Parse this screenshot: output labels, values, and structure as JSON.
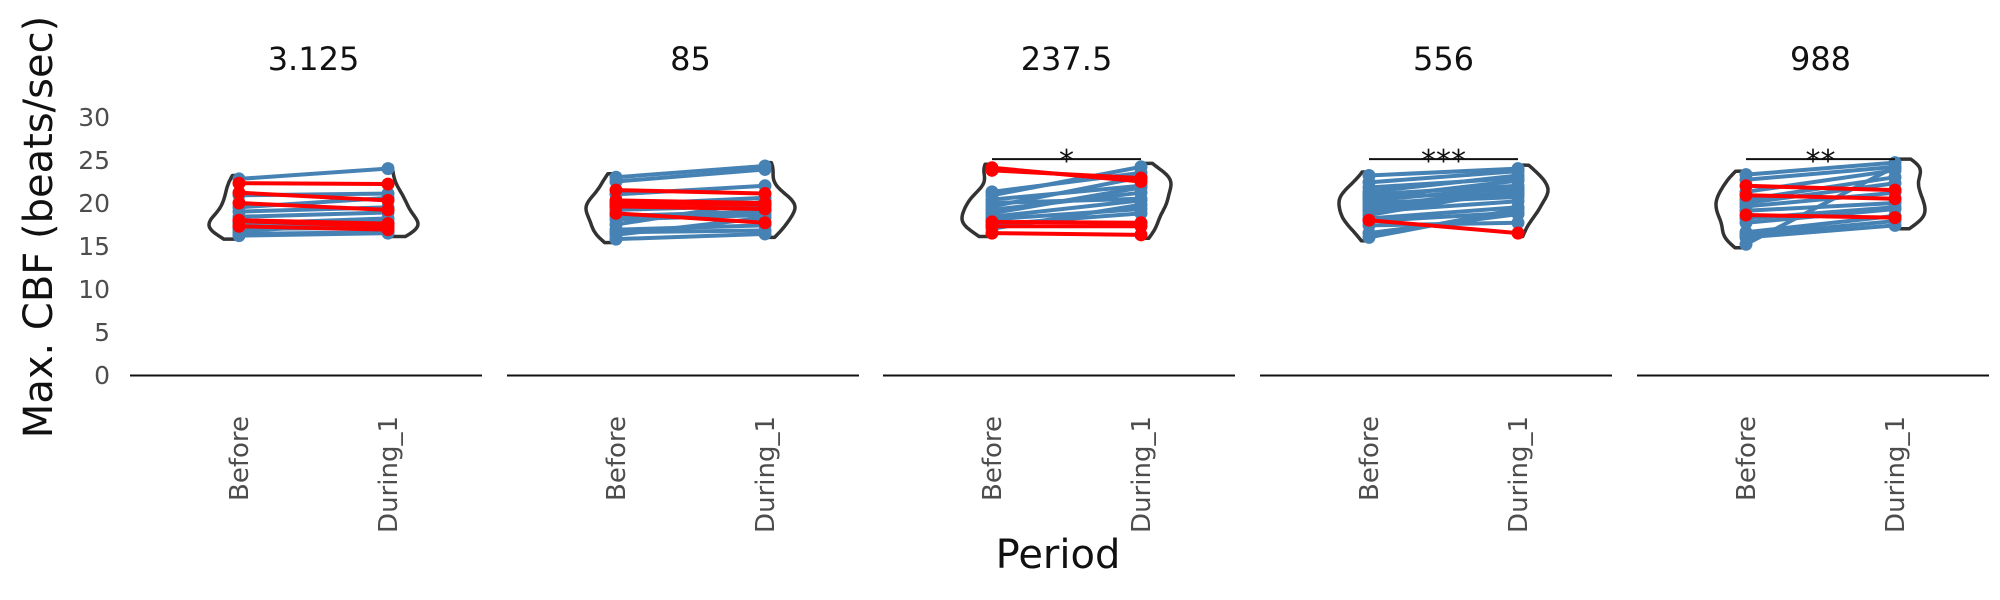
{
  "chart_data": {
    "type": "line",
    "ylabel": "Max. CBF (beats/sec)",
    "xlabel": "Period",
    "ylim": [
      0,
      30
    ],
    "yticks": [
      0,
      5,
      10,
      15,
      20,
      25,
      30
    ],
    "categories": [
      "Before",
      "During_1"
    ],
    "colors": {
      "increase": "#4682b4",
      "decrease": "#ff0000",
      "violin": "#333333"
    },
    "facets": [
      {
        "title": "3.125",
        "significance": "",
        "lines": [
          [
            22.8,
            24.0
          ],
          [
            22.3,
            22.2
          ],
          [
            21.2,
            20.3
          ],
          [
            20.9,
            21.1
          ],
          [
            20.0,
            19.2
          ],
          [
            19.5,
            20.6
          ],
          [
            19.0,
            19.5
          ],
          [
            18.4,
            18.9
          ],
          [
            18.0,
            17.6
          ],
          [
            17.9,
            17.3
          ],
          [
            17.6,
            18.2
          ],
          [
            17.3,
            16.9
          ],
          [
            17.2,
            17.5
          ],
          [
            17.0,
            17.1
          ],
          [
            16.7,
            17.8
          ],
          [
            16.4,
            16.6
          ],
          [
            16.2,
            16.5
          ]
        ]
      },
      {
        "title": "85",
        "significance": "",
        "lines": [
          [
            23.0,
            24.3
          ],
          [
            22.5,
            23.9
          ],
          [
            21.5,
            21.1
          ],
          [
            21.0,
            22.0
          ],
          [
            20.3,
            20.0
          ],
          [
            20.0,
            19.8
          ],
          [
            19.8,
            20.6
          ],
          [
            19.6,
            19.3
          ],
          [
            19.2,
            19.7
          ],
          [
            18.8,
            17.7
          ],
          [
            18.5,
            19.0
          ],
          [
            18.1,
            18.6
          ],
          [
            17.5,
            20.2
          ],
          [
            16.9,
            17.4
          ],
          [
            16.6,
            16.8
          ],
          [
            16.3,
            18.3
          ],
          [
            15.8,
            16.4
          ]
        ]
      },
      {
        "title": "237.5",
        "significance": "*",
        "lines": [
          [
            24.1,
            22.5
          ],
          [
            23.8,
            22.9
          ],
          [
            21.3,
            23.5
          ],
          [
            20.9,
            24.2
          ],
          [
            20.4,
            22.0
          ],
          [
            20.0,
            20.5
          ],
          [
            19.6,
            23.0
          ],
          [
            19.2,
            21.2
          ],
          [
            18.8,
            21.8
          ],
          [
            18.4,
            20.3
          ],
          [
            18.1,
            19.3
          ],
          [
            17.8,
            17.7
          ],
          [
            17.5,
            18.8
          ],
          [
            17.3,
            17.3
          ],
          [
            16.5,
            16.3
          ],
          [
            17.0,
            19.8
          ]
        ]
      },
      {
        "title": "556",
        "significance": "***",
        "lines": [
          [
            23.2,
            24.0
          ],
          [
            22.4,
            23.7
          ],
          [
            21.8,
            22.9
          ],
          [
            21.3,
            23.2
          ],
          [
            21.0,
            22.0
          ],
          [
            20.8,
            21.0
          ],
          [
            20.6,
            22.6
          ],
          [
            20.3,
            21.8
          ],
          [
            20.0,
            20.7
          ],
          [
            19.7,
            21.4
          ],
          [
            19.3,
            21.1
          ],
          [
            19.0,
            20.2
          ],
          [
            18.6,
            21.6
          ],
          [
            18.2,
            19.5
          ],
          [
            17.9,
            18.9
          ],
          [
            17.4,
            17.7
          ],
          [
            16.5,
            18.7
          ],
          [
            16.0,
            19.3
          ],
          [
            18.0,
            16.5
          ]
        ]
      },
      {
        "title": "988",
        "significance": "**",
        "lines": [
          [
            23.3,
            24.7
          ],
          [
            22.7,
            24.2
          ],
          [
            22.0,
            21.5
          ],
          [
            21.3,
            23.8
          ],
          [
            20.9,
            20.5
          ],
          [
            20.4,
            23.0
          ],
          [
            20.0,
            22.3
          ],
          [
            19.6,
            21.2
          ],
          [
            19.1,
            20.0
          ],
          [
            18.6,
            18.3
          ],
          [
            18.2,
            19.5
          ],
          [
            17.7,
            19.3
          ],
          [
            16.6,
            18.5
          ],
          [
            16.0,
            17.4
          ],
          [
            15.2,
            24.2
          ],
          [
            16.3,
            17.9
          ]
        ]
      }
    ]
  }
}
